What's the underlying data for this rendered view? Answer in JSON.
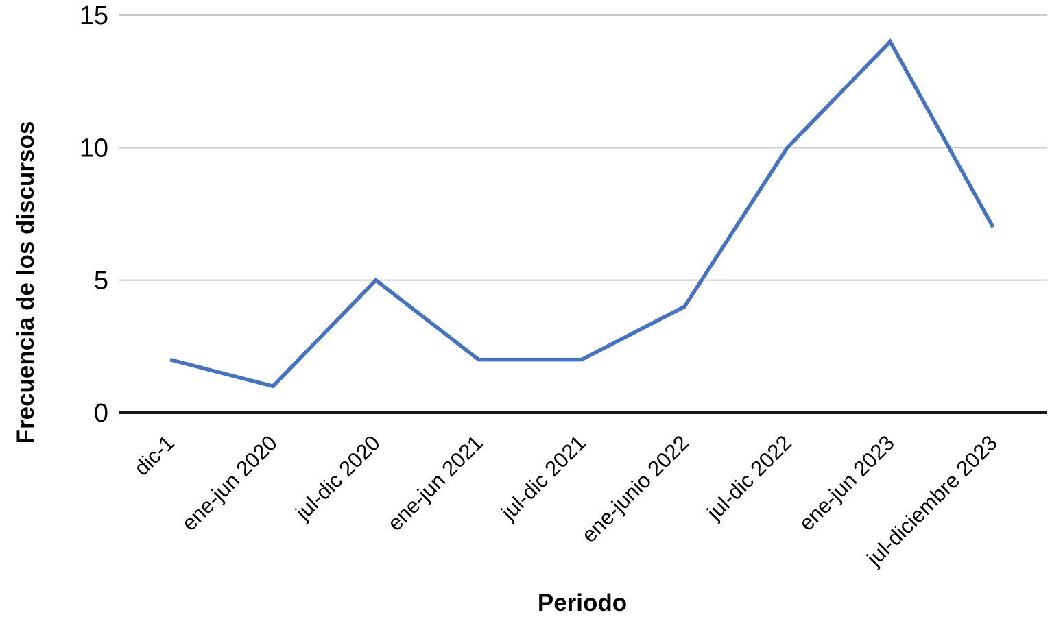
{
  "chart_data": {
    "type": "line",
    "categories": [
      "dic-1",
      "ene-jun 2020",
      "jul-dic 2020",
      "ene-jun 2021",
      "jul-dic 2021",
      "ene-junio 2022",
      "jul-dic 2022",
      "ene-jun 2023",
      "jul-diciembre 2023"
    ],
    "values": [
      2,
      1,
      5,
      2,
      2,
      4,
      10,
      14,
      7
    ],
    "title": "",
    "xlabel": "Periodo",
    "ylabel": "Frecuencia de los discursos",
    "yticks": [
      0,
      5,
      10,
      15
    ],
    "ylim": [
      0,
      15
    ],
    "grid": true,
    "legend": false,
    "colors": {
      "line": "#4472C4",
      "gridline": "#c9c9c9",
      "axis": "#1a1a1a",
      "text": "#000000",
      "background": "#ffffff"
    }
  }
}
